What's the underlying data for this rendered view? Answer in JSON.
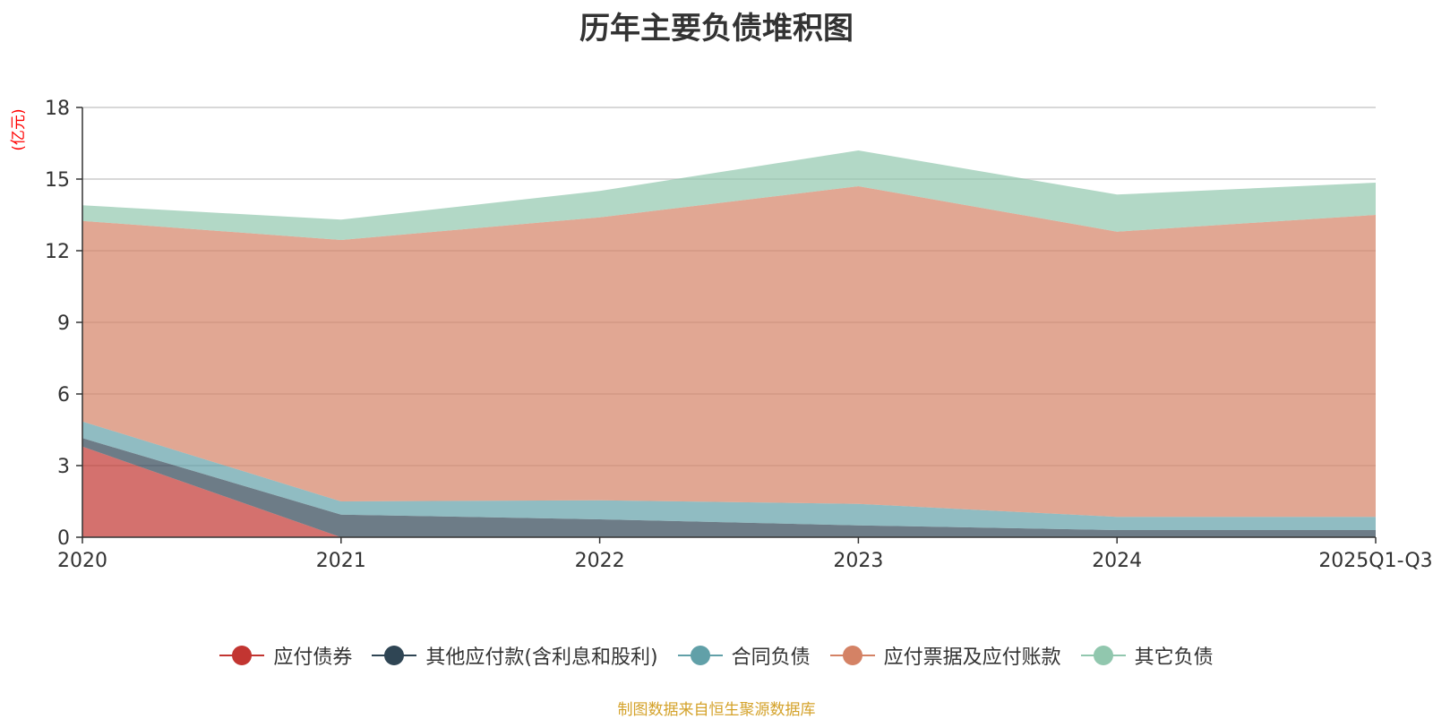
{
  "chart_data": {
    "type": "area",
    "stacked": true,
    "title": "历年主要负债堆积图",
    "ylabel": "(亿元)",
    "xlabel": "",
    "ylim": [
      0,
      18
    ],
    "yticks": [
      0,
      3,
      6,
      9,
      12,
      15,
      18
    ],
    "categories": [
      "2020",
      "2021",
      "2022",
      "2023",
      "2024",
      "2025Q1-Q3"
    ],
    "series": [
      {
        "name": "应付债券",
        "color": "#c23531",
        "values": [
          3.8,
          0,
          0,
          0,
          0,
          0
        ]
      },
      {
        "name": "其他应付款(含利息和股利)",
        "color": "#2f4554",
        "values": [
          0.35,
          0.95,
          0.75,
          0.5,
          0.3,
          0.3
        ]
      },
      {
        "name": "合同负债",
        "color": "#61a0a8",
        "values": [
          0.7,
          0.55,
          0.8,
          0.9,
          0.55,
          0.55
        ]
      },
      {
        "name": "应付票据及应付账款",
        "color": "#d48265",
        "values": [
          8.4,
          10.95,
          11.85,
          13.3,
          11.95,
          12.65
        ]
      },
      {
        "name": "其它负债",
        "color": "#91c7ae",
        "values": [
          0.65,
          0.85,
          1.1,
          1.5,
          1.55,
          1.35
        ]
      }
    ],
    "legend_position": "bottom-center",
    "grid": true
  },
  "source_note": "制图数据来自恒生聚源数据库"
}
